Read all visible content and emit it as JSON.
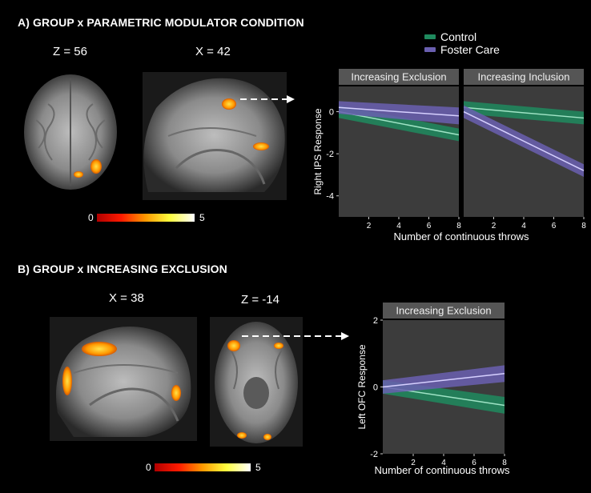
{
  "panel_a": {
    "title": "A)  GROUP x PARAMETRIC MODULATOR CONDITION",
    "slice1": "Z = 56",
    "slice2": "X = 42",
    "cbar_min": "0",
    "cbar_max": "5"
  },
  "panel_b": {
    "title": "B)  GROUP x INCREASING EXCLUSION",
    "slice1": "X = 38",
    "slice2": "Z = -14",
    "cbar_min": "0",
    "cbar_max": "5"
  },
  "legend": {
    "items": [
      {
        "label": "Control",
        "color": "#1f8a5e"
      },
      {
        "label": "Foster Care",
        "color": "#6a5fb0"
      }
    ]
  },
  "colors": {
    "control_band": "#1f8a5e",
    "control_line": "#9fe3c5",
    "foster_band": "#6a5fb0",
    "foster_line": "#d6d0ff",
    "plot_bg": "#3c3c3c",
    "strip_bg": "#555555"
  },
  "chart_data": [
    {
      "type": "line",
      "facet": "Increasing Exclusion",
      "xlabel": "Number of continuous throws",
      "ylabel": "Right IPS Response",
      "xlim": [
        0,
        8
      ],
      "ylim": [
        -5,
        1.2
      ],
      "xticks": [
        2,
        4,
        6,
        8
      ],
      "yticks": [
        0,
        -2,
        -4
      ],
      "series": [
        {
          "name": "Control",
          "x": [
            0,
            8
          ],
          "y": [
            0.0,
            -1.1
          ],
          "ci_low": [
            -0.3,
            -1.4
          ],
          "ci_high": [
            0.3,
            -0.8
          ]
        },
        {
          "name": "Foster Care",
          "x": [
            0,
            8
          ],
          "y": [
            0.2,
            -0.2
          ],
          "ci_low": [
            -0.1,
            -0.6
          ],
          "ci_high": [
            0.5,
            0.2
          ]
        }
      ]
    },
    {
      "type": "line",
      "facet": "Increasing Inclusion",
      "xlabel": "Number of continuous throws",
      "ylabel": "Right IPS Response",
      "xlim": [
        0,
        8
      ],
      "ylim": [
        -5,
        1.2
      ],
      "xticks": [
        2,
        4,
        6,
        8
      ],
      "yticks": [
        0,
        -2,
        -4
      ],
      "series": [
        {
          "name": "Control",
          "x": [
            0,
            8
          ],
          "y": [
            0.2,
            -0.3
          ],
          "ci_low": [
            -0.1,
            -0.6
          ],
          "ci_high": [
            0.5,
            0.0
          ]
        },
        {
          "name": "Foster Care",
          "x": [
            0,
            8
          ],
          "y": [
            0.0,
            -2.8
          ],
          "ci_low": [
            -0.3,
            -3.1
          ],
          "ci_high": [
            0.3,
            -2.5
          ]
        }
      ]
    },
    {
      "type": "line",
      "facet": "Increasing Exclusion",
      "xlabel": "Number of continuous throws",
      "ylabel": "Left OFC Response",
      "xlim": [
        0,
        8
      ],
      "ylim": [
        -2,
        2
      ],
      "xticks": [
        2,
        4,
        6,
        8
      ],
      "yticks": [
        2,
        0,
        -2
      ],
      "series": [
        {
          "name": "Control",
          "x": [
            0,
            8
          ],
          "y": [
            0.0,
            -0.55
          ],
          "ci_low": [
            -0.2,
            -0.8
          ],
          "ci_high": [
            0.2,
            -0.3
          ]
        },
        {
          "name": "Foster Care",
          "x": [
            0,
            8
          ],
          "y": [
            0.0,
            0.4
          ],
          "ci_low": [
            -0.2,
            0.15
          ],
          "ci_high": [
            0.2,
            0.65
          ]
        }
      ]
    }
  ]
}
